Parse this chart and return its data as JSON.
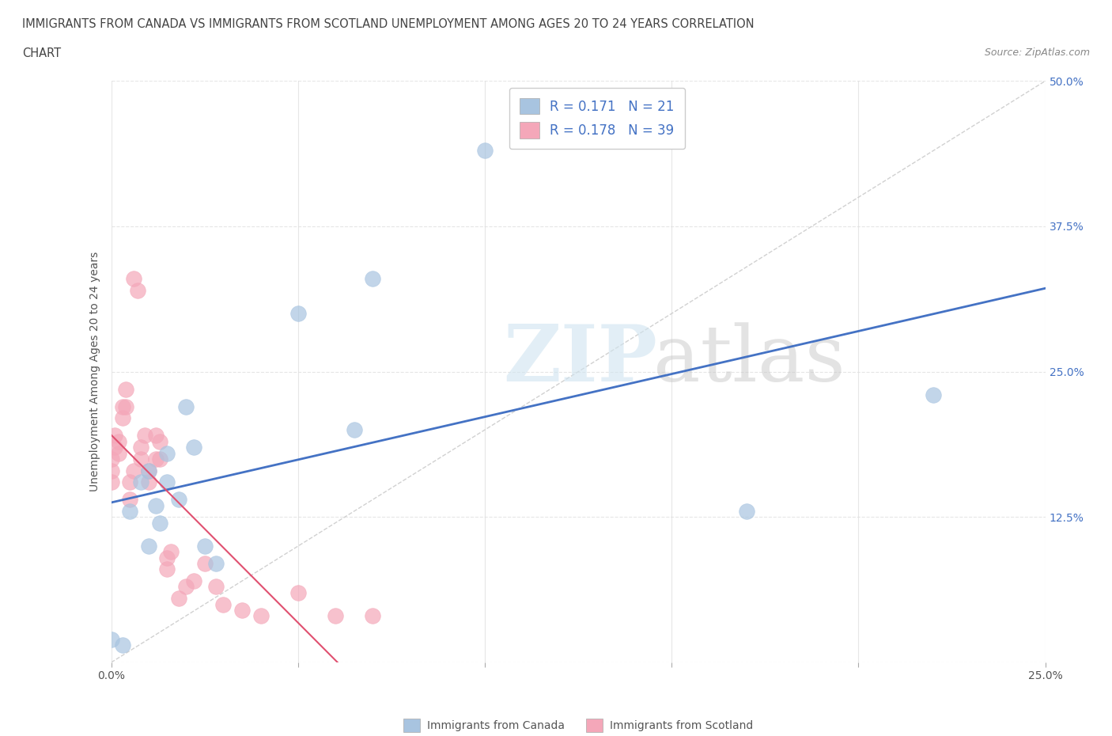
{
  "title_line1": "IMMIGRANTS FROM CANADA VS IMMIGRANTS FROM SCOTLAND UNEMPLOYMENT AMONG AGES 20 TO 24 YEARS CORRELATION",
  "title_line2": "CHART",
  "source_text": "Source: ZipAtlas.com",
  "ylabel": "Unemployment Among Ages 20 to 24 years",
  "xlabel_canada": "Immigrants from Canada",
  "xlabel_scotland": "Immigrants from Scotland",
  "xlim": [
    0.0,
    0.25
  ],
  "ylim": [
    0.0,
    0.5
  ],
  "xticks": [
    0.0,
    0.05,
    0.1,
    0.15,
    0.2,
    0.25
  ],
  "yticks": [
    0.0,
    0.125,
    0.25,
    0.375,
    0.5
  ],
  "xtick_labels": [
    "0.0%",
    "",
    "",
    "",
    "",
    "25.0%"
  ],
  "ytick_labels": [
    "",
    "12.5%",
    "25.0%",
    "37.5%",
    "50.0%"
  ],
  "canada_R": 0.171,
  "canada_N": 21,
  "scotland_R": 0.178,
  "scotland_N": 39,
  "canada_color": "#a8c4e0",
  "scotland_color": "#f4a7b9",
  "canada_line_color": "#4472c4",
  "scotland_line_color": "#e05070",
  "diagonal_line_color": "#cccccc",
  "grid_color": "#e0e0e0",
  "canada_scatter_x": [
    0.0,
    0.003,
    0.005,
    0.008,
    0.01,
    0.01,
    0.012,
    0.013,
    0.015,
    0.015,
    0.018,
    0.02,
    0.022,
    0.025,
    0.028,
    0.05,
    0.065,
    0.07,
    0.1,
    0.17,
    0.22
  ],
  "canada_scatter_y": [
    0.02,
    0.015,
    0.13,
    0.155,
    0.165,
    0.1,
    0.135,
    0.12,
    0.18,
    0.155,
    0.14,
    0.22,
    0.185,
    0.1,
    0.085,
    0.3,
    0.2,
    0.33,
    0.44,
    0.13,
    0.23
  ],
  "scotland_scatter_x": [
    0.0,
    0.0,
    0.0,
    0.001,
    0.001,
    0.002,
    0.002,
    0.003,
    0.003,
    0.004,
    0.004,
    0.005,
    0.005,
    0.006,
    0.006,
    0.007,
    0.008,
    0.008,
    0.009,
    0.01,
    0.01,
    0.012,
    0.012,
    0.013,
    0.013,
    0.015,
    0.015,
    0.016,
    0.018,
    0.02,
    0.022,
    0.025,
    0.028,
    0.03,
    0.035,
    0.04,
    0.05,
    0.06,
    0.07
  ],
  "scotland_scatter_y": [
    0.155,
    0.165,
    0.175,
    0.185,
    0.195,
    0.18,
    0.19,
    0.21,
    0.22,
    0.22,
    0.235,
    0.14,
    0.155,
    0.165,
    0.33,
    0.32,
    0.175,
    0.185,
    0.195,
    0.155,
    0.165,
    0.175,
    0.195,
    0.175,
    0.19,
    0.08,
    0.09,
    0.095,
    0.055,
    0.065,
    0.07,
    0.085,
    0.065,
    0.05,
    0.045,
    0.04,
    0.06,
    0.04,
    0.04
  ]
}
